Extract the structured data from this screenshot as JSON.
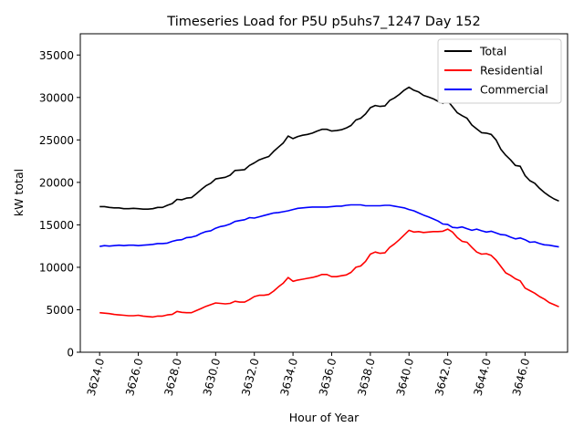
{
  "chart_data": {
    "type": "line",
    "title": "Timeseries Load for P5U p5uhs7_1247  Day 152",
    "xlabel": "Hour of Year",
    "ylabel": "kW total",
    "xlim": [
      3623,
      3648.2
    ],
    "ylim": [
      0,
      37500
    ],
    "grid": false,
    "legend_position": "top-right",
    "xticks": [
      3624,
      3626,
      3628,
      3630,
      3632,
      3634,
      3636,
      3638,
      3640,
      3642,
      3644,
      3646
    ],
    "xtick_labels": [
      "3624.0",
      "3626.0",
      "3628.0",
      "3630.0",
      "3632.0",
      "3634.0",
      "3636.0",
      "3638.0",
      "3640.0",
      "3642.0",
      "3644.0",
      "3646.0"
    ],
    "yticks": [
      0,
      5000,
      10000,
      15000,
      20000,
      25000,
      30000,
      35000
    ],
    "ytick_labels": [
      "0",
      "5000",
      "10000",
      "15000",
      "20000",
      "25000",
      "30000",
      "35000"
    ],
    "x": [
      3624.0,
      3624.25,
      3624.5,
      3624.75,
      3625.0,
      3625.25,
      3625.5,
      3625.75,
      3626.0,
      3626.25,
      3626.5,
      3626.75,
      3627.0,
      3627.25,
      3627.5,
      3627.75,
      3628.0,
      3628.25,
      3628.5,
      3628.75,
      3629.0,
      3629.25,
      3629.5,
      3629.75,
      3630.0,
      3630.25,
      3630.5,
      3630.75,
      3631.0,
      3631.25,
      3631.5,
      3631.75,
      3632.0,
      3632.25,
      3632.5,
      3632.75,
      3633.0,
      3633.25,
      3633.5,
      3633.75,
      3634.0,
      3634.25,
      3634.5,
      3634.75,
      3635.0,
      3635.25,
      3635.5,
      3635.75,
      3636.0,
      3636.25,
      3636.5,
      3636.75,
      3637.0,
      3637.25,
      3637.5,
      3637.75,
      3638.0,
      3638.25,
      3638.5,
      3638.75,
      3639.0,
      3639.25,
      3639.5,
      3639.75,
      3640.0,
      3640.25,
      3640.5,
      3640.75,
      3641.0,
      3641.25,
      3641.5,
      3641.75,
      3642.0,
      3642.25,
      3642.5,
      3642.75,
      3643.0,
      3643.25,
      3643.5,
      3643.75,
      3644.0,
      3644.25,
      3644.5,
      3644.75,
      3645.0,
      3645.25,
      3645.5,
      3645.75,
      3646.0,
      3646.25,
      3646.5,
      3646.75,
      3647.0,
      3647.25,
      3647.5,
      3647.75
    ],
    "series": [
      {
        "name": "Total",
        "color": "#000000",
        "values": [
          17150,
          17150,
          17050,
          17000,
          17000,
          16900,
          16900,
          16950,
          16900,
          16850,
          16850,
          16900,
          17050,
          17050,
          17300,
          17500,
          18000,
          17950,
          18150,
          18200,
          18650,
          19150,
          19600,
          19900,
          20400,
          20500,
          20600,
          20850,
          21400,
          21450,
          21500,
          22000,
          22300,
          22650,
          22850,
          23050,
          23650,
          24150,
          24650,
          25450,
          25150,
          25400,
          25550,
          25650,
          25800,
          26050,
          26250,
          26250,
          26050,
          26100,
          26200,
          26400,
          26700,
          27350,
          27550,
          28050,
          28800,
          29050,
          28950,
          29000,
          29650,
          29950,
          30350,
          30850,
          31200,
          30850,
          30650,
          30250,
          30050,
          29850,
          29550,
          29300,
          29600,
          28900,
          28200,
          27850,
          27550,
          26750,
          26300,
          25850,
          25800,
          25650,
          25000,
          23900,
          23200,
          22650,
          22000,
          21900,
          20800,
          20200,
          19900,
          19300,
          18800,
          18400,
          18050,
          17800
        ]
      },
      {
        "name": "Residential",
        "color": "#ff0000",
        "values": [
          4650,
          4600,
          4550,
          4450,
          4400,
          4350,
          4300,
          4300,
          4350,
          4250,
          4200,
          4150,
          4250,
          4250,
          4400,
          4450,
          4800,
          4700,
          4650,
          4650,
          4900,
          5150,
          5400,
          5600,
          5800,
          5750,
          5700,
          5750,
          6000,
          5900,
          5900,
          6200,
          6550,
          6700,
          6700,
          6800,
          7200,
          7700,
          8150,
          8800,
          8350,
          8500,
          8600,
          8700,
          8800,
          8950,
          9150,
          9150,
          8900,
          8900,
          9000,
          9100,
          9400,
          10000,
          10150,
          10700,
          11550,
          11800,
          11650,
          11700,
          12350,
          12750,
          13250,
          13800,
          14350,
          14150,
          14200,
          14100,
          14150,
          14200,
          14200,
          14250,
          14500,
          14150,
          13500,
          13050,
          12950,
          12350,
          11800,
          11550,
          11600,
          11400,
          10850,
          10100,
          9350,
          9050,
          8650,
          8400,
          7550,
          7250,
          6950,
          6550,
          6250,
          5850,
          5600,
          5350
        ]
      },
      {
        "name": "Commercial",
        "color": "#0000ff",
        "values": [
          12450,
          12550,
          12500,
          12550,
          12600,
          12550,
          12600,
          12600,
          12550,
          12600,
          12650,
          12700,
          12800,
          12800,
          12850,
          13050,
          13200,
          13250,
          13500,
          13550,
          13700,
          14000,
          14200,
          14300,
          14600,
          14800,
          14900,
          15100,
          15400,
          15500,
          15600,
          15850,
          15800,
          15950,
          16100,
          16250,
          16400,
          16450,
          16550,
          16650,
          16800,
          16950,
          17000,
          17050,
          17100,
          17100,
          17100,
          17100,
          17150,
          17200,
          17200,
          17300,
          17350,
          17350,
          17350,
          17250,
          17250,
          17250,
          17250,
          17300,
          17300,
          17200,
          17100,
          17000,
          16800,
          16650,
          16400,
          16150,
          15950,
          15700,
          15450,
          15100,
          15050,
          14700,
          14650,
          14750,
          14550,
          14350,
          14500,
          14300,
          14150,
          14250,
          14050,
          13850,
          13800,
          13550,
          13350,
          13450,
          13250,
          12950,
          13000,
          12800,
          12650,
          12600,
          12500,
          12400
        ]
      }
    ]
  }
}
